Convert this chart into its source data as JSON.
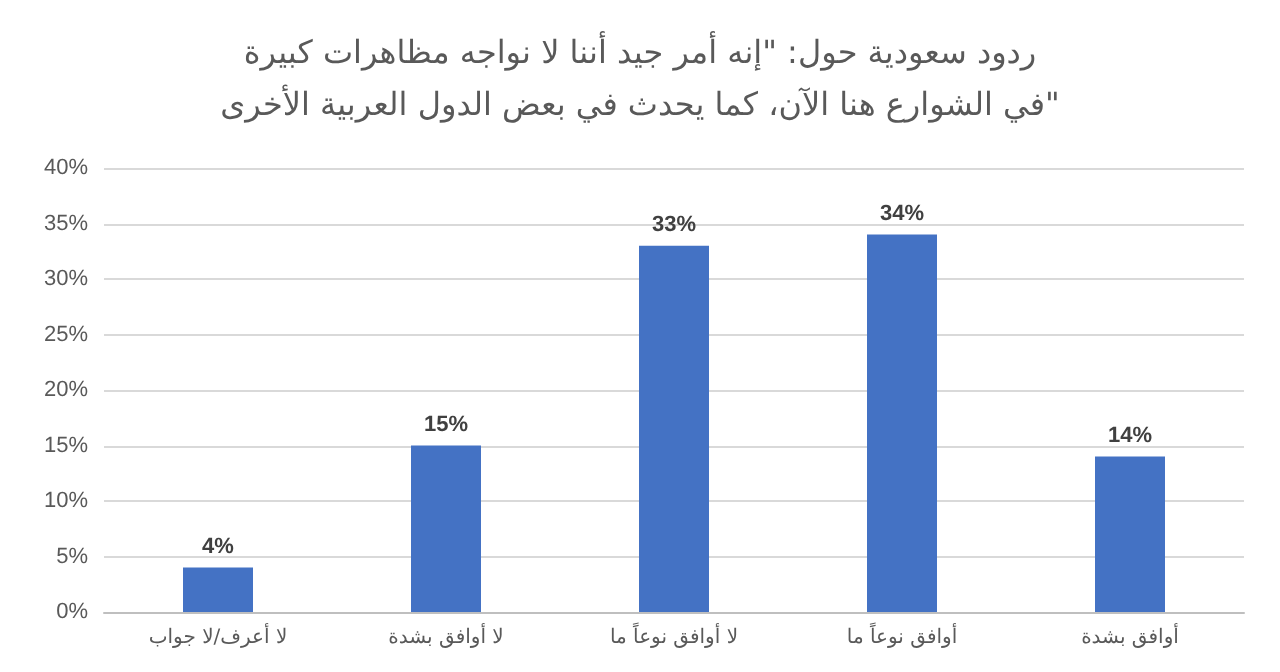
{
  "chart_data": {
    "type": "bar",
    "title": "ردود سعودية حول: \"إنه أمر جيد أننا لا نواجه مظاهرات كبيرة في الشوارع هنا الآن، كما يحدث في بعض الدول العربية الأخرى\"",
    "categories": [
      "لا أعرف/لا جواب",
      "لا أوافق بشدة",
      "لا أوافق نوعاً ما",
      "أوافق نوعاً ما",
      "أوافق بشدة"
    ],
    "values": [
      4,
      15,
      33,
      34,
      14
    ],
    "color": "#4472c4",
    "ylim": [
      0,
      40
    ],
    "yticks": [
      {
        "value": 0,
        "label": "0%"
      },
      {
        "value": 5,
        "label": "5%"
      },
      {
        "value": 10,
        "label": "10%"
      },
      {
        "value": 15,
        "label": "15%"
      },
      {
        "value": 20,
        "label": "20%"
      },
      {
        "value": 25,
        "label": "25%"
      },
      {
        "value": 30,
        "label": "30%"
      },
      {
        "value": 35,
        "label": "35%"
      },
      {
        "value": 40,
        "label": "40%"
      }
    ],
    "value_labels": [
      "4%",
      "15%",
      "33%",
      "34%",
      "14%"
    ],
    "grid": "y"
  }
}
